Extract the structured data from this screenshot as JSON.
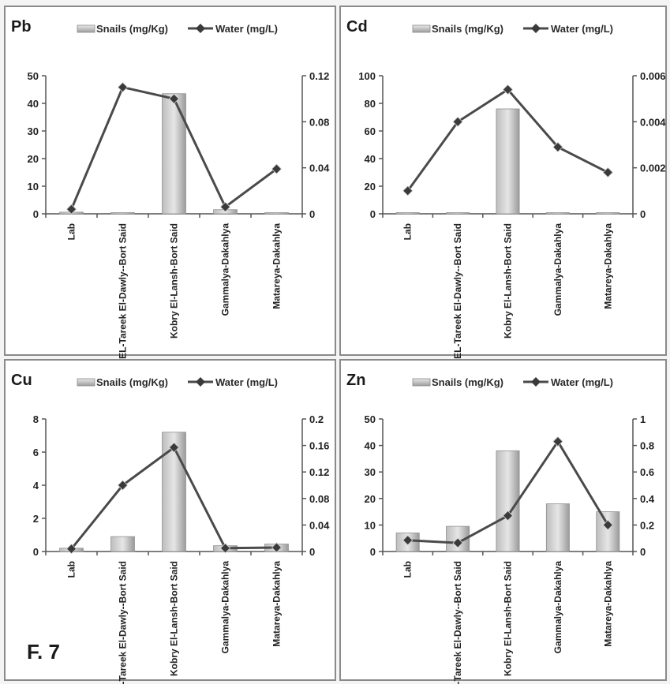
{
  "figure_label": "F. 7",
  "legend": {
    "bars": "Snails (mg/Kg)",
    "line": "Water (mg/L)"
  },
  "chart_data": [
    {
      "type": "bar+line",
      "title": "Pb",
      "categories": [
        "Lab",
        "EL-Tareek El-Dawly--Bort Said",
        "Kobry El-Lansh-Bort Said",
        "Gammalya-Dakahlya",
        "Matareya-Dakahlya"
      ],
      "series": [
        {
          "name": "Snails (mg/Kg)",
          "axis": "left",
          "kind": "bar",
          "values": [
            0.6,
            0,
            43.5,
            1.5,
            0.4
          ]
        },
        {
          "name": "Water (mg/L)",
          "axis": "right",
          "kind": "line",
          "values": [
            0.004,
            0.11,
            0.1,
            0.006,
            0.039
          ]
        }
      ],
      "left_ylim": [
        0,
        50
      ],
      "left_ticks": [
        "0",
        "10",
        "20",
        "30",
        "40",
        "50"
      ],
      "right_ylim": [
        0,
        0.12
      ],
      "right_ticks": [
        "0",
        "0.04",
        "0.08",
        "0.12"
      ]
    },
    {
      "type": "bar+line",
      "title": "Cd",
      "categories": [
        "Lab",
        "EL-Tareek El-Dawly--Bort Said",
        "Kobry El-Lansh-Bort Said",
        "Gammalya-Dakahlya",
        "Matareya-Dakahlya"
      ],
      "series": [
        {
          "name": "Snails (mg/Kg)",
          "axis": "left",
          "kind": "bar",
          "values": [
            0,
            0,
            76,
            0,
            0
          ]
        },
        {
          "name": "Water (mg/L)",
          "axis": "right",
          "kind": "line",
          "values": [
            0.001,
            0.004,
            0.0054,
            0.0029,
            0.0018
          ]
        }
      ],
      "left_ylim": [
        0,
        100
      ],
      "left_ticks": [
        "0",
        "20",
        "40",
        "60",
        "80",
        "100"
      ],
      "right_ylim": [
        0,
        0.006
      ],
      "right_ticks": [
        "0",
        "0.002",
        "0.004",
        "0.006"
      ]
    },
    {
      "type": "bar+line",
      "title": "Cu",
      "categories": [
        "Lab",
        "EL-Tareek El-Dawly--Bort Said",
        "Kobry El-Lansh-Bort Said",
        "Gammalya-Dakahlya",
        "Matareya-Dakahlya"
      ],
      "series": [
        {
          "name": "Snails (mg/Kg)",
          "axis": "left",
          "kind": "bar",
          "values": [
            0.2,
            0.9,
            7.2,
            0.35,
            0.45
          ]
        },
        {
          "name": "Water (mg/L)",
          "axis": "right",
          "kind": "line",
          "values": [
            0.004,
            0.1,
            0.157,
            0.005,
            0.006
          ]
        }
      ],
      "left_ylim": [
        0,
        8
      ],
      "left_ticks": [
        "0",
        "2",
        "4",
        "6",
        "8"
      ],
      "right_ylim": [
        0,
        0.2
      ],
      "right_ticks": [
        "0",
        "0.04",
        "0.08",
        "0.12",
        "0.16",
        "0.2"
      ]
    },
    {
      "type": "bar+line",
      "title": "Zn",
      "categories": [
        "Lab",
        "EL-Tareek El-Dawly--Bort Said",
        "Kobry El-Lansh-Bort Said",
        "Gammalya-Dakahlya",
        "Matareya-Dakahlya"
      ],
      "series": [
        {
          "name": "Snails (mg/Kg)",
          "axis": "left",
          "kind": "bar",
          "values": [
            7,
            9.5,
            38,
            18,
            15
          ]
        },
        {
          "name": "Water (mg/L)",
          "axis": "right",
          "kind": "line",
          "values": [
            0.085,
            0.065,
            0.27,
            0.83,
            0.2
          ]
        }
      ],
      "left_ylim": [
        0,
        50
      ],
      "left_ticks": [
        "0",
        "10",
        "20",
        "30",
        "40",
        "50"
      ],
      "right_ylim": [
        0,
        1
      ],
      "right_ticks": [
        "0",
        "0.2",
        "0.4",
        "0.6",
        "0.8",
        "1"
      ]
    }
  ],
  "colors": {
    "bar_fill_light": "#dcdcdc",
    "bar_fill_dark": "#9a9a9a",
    "line": "#4a4a4a",
    "marker": "#3a3a3a"
  }
}
